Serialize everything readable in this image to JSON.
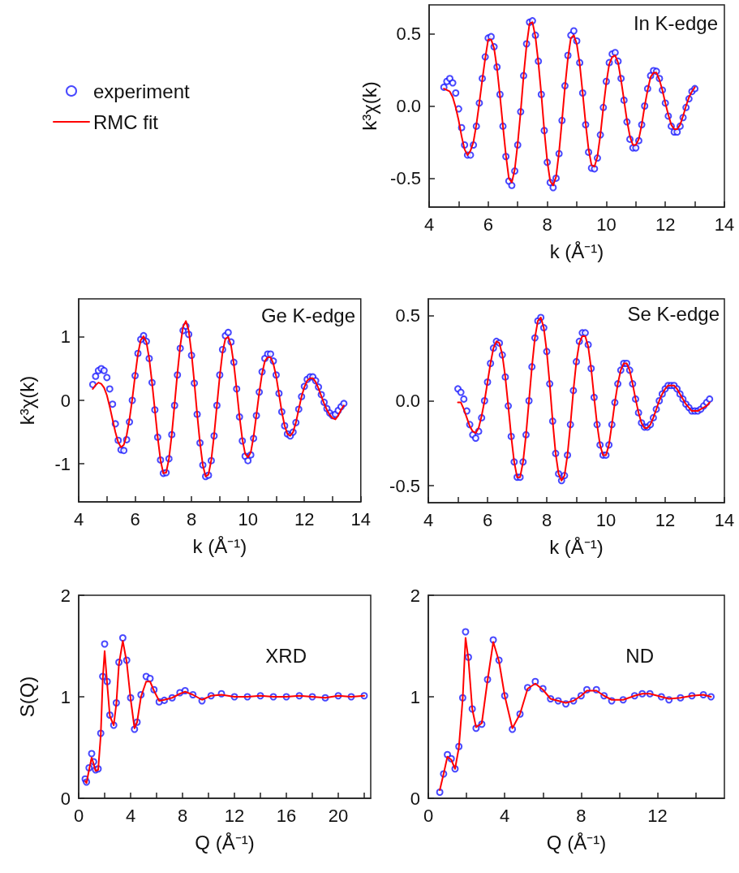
{
  "chart_data": [
    {
      "type": "scatter",
      "ylabel": "k³χ(k)",
      "xlabel": "k (Å⁻¹)",
      "annotations": [
        "In K-edge"
      ],
      "legend": "left",
      "xlim": [
        4,
        14
      ],
      "xticks": [
        4,
        {
          "value": 5,
          "label": null
        },
        6,
        {
          "value": 7,
          "label": null
        },
        8,
        {
          "value": 9,
          "label": null
        },
        10,
        {
          "value": 11,
          "label": null
        },
        12,
        {
          "value": 13,
          "label": null
        },
        14
      ],
      "ylim": [
        -0.7,
        0.7
      ],
      "yticks": [
        -0.5,
        {
          "value": 0,
          "label": "0.0"
        },
        0.5
      ],
      "x": [
        4.5,
        4.6,
        4.7,
        4.8,
        4.9,
        5.0,
        5.1,
        5.2,
        5.3,
        5.4,
        5.5,
        5.6,
        5.7,
        5.8,
        5.9,
        6.0,
        6.1,
        6.2,
        6.3,
        6.4,
        6.5,
        6.6,
        6.7,
        6.8,
        6.9,
        7.0,
        7.1,
        7.2,
        7.3,
        7.4,
        7.5,
        7.6,
        7.7,
        7.8,
        7.9,
        8.0,
        8.1,
        8.2,
        8.3,
        8.4,
        8.5,
        8.6,
        8.7,
        8.8,
        8.9,
        9.0,
        9.1,
        9.2,
        9.3,
        9.4,
        9.5,
        9.6,
        9.7,
        9.8,
        9.9,
        10.0,
        10.1,
        10.2,
        10.3,
        10.4,
        10.5,
        10.6,
        10.7,
        10.8,
        10.9,
        11.0,
        11.1,
        11.2,
        11.3,
        11.4,
        11.5,
        11.6,
        11.7,
        11.8,
        11.9,
        12.0,
        12.1,
        12.2,
        12.3,
        12.4,
        12.5,
        12.6,
        12.7,
        12.8,
        12.9,
        13.0
      ],
      "series": [
        {
          "name": "experiment",
          "type": "scatter",
          "marker": "circle",
          "color": "#1a1aff",
          "values": [
            0.13,
            0.17,
            0.19,
            0.16,
            0.09,
            -0.02,
            -0.15,
            -0.27,
            -0.34,
            -0.34,
            -0.27,
            -0.14,
            0.02,
            0.19,
            0.34,
            0.47,
            0.48,
            0.41,
            0.27,
            0.08,
            -0.14,
            -0.35,
            -0.52,
            -0.55,
            -0.45,
            -0.27,
            -0.04,
            0.21,
            0.43,
            0.58,
            0.59,
            0.49,
            0.31,
            0.08,
            -0.17,
            -0.39,
            -0.53,
            -0.565,
            -0.5,
            -0.33,
            -0.1,
            0.14,
            0.35,
            0.49,
            0.52,
            0.45,
            0.3,
            0.09,
            -0.13,
            -0.32,
            -0.43,
            -0.435,
            -0.36,
            -0.2,
            -0.01,
            0.17,
            0.3,
            0.36,
            0.37,
            0.31,
            0.19,
            0.04,
            -0.11,
            -0.23,
            -0.29,
            -0.29,
            -0.24,
            -0.13,
            0.0,
            0.12,
            0.21,
            0.245,
            0.24,
            0.19,
            0.11,
            0.02,
            -0.07,
            -0.14,
            -0.18,
            -0.18,
            -0.14,
            -0.08,
            -0.01,
            0.05,
            0.1,
            0.12
          ]
        },
        {
          "name": "RMC fit",
          "type": "line",
          "marker": "none",
          "line_style": "solid",
          "color": "#ff0000",
          "values": [
            0.12,
            0.11,
            0.1,
            0.06,
            -0.01,
            -0.1,
            -0.21,
            -0.3,
            -0.34,
            -0.31,
            -0.25,
            -0.13,
            0.02,
            0.18,
            0.33,
            0.46,
            0.46,
            0.4,
            0.26,
            0.07,
            -0.14,
            -0.34,
            -0.5,
            -0.53,
            -0.44,
            -0.26,
            -0.04,
            0.21,
            0.42,
            0.57,
            0.58,
            0.48,
            0.3,
            0.08,
            -0.17,
            -0.38,
            -0.52,
            -0.55,
            -0.49,
            -0.32,
            -0.1,
            0.13,
            0.33,
            0.47,
            0.49,
            0.43,
            0.29,
            0.09,
            -0.12,
            -0.3,
            -0.41,
            -0.42,
            -0.35,
            -0.2,
            -0.01,
            0.16,
            0.29,
            0.34,
            0.35,
            0.3,
            0.18,
            0.04,
            -0.1,
            -0.21,
            -0.27,
            -0.27,
            -0.23,
            -0.13,
            0.0,
            0.11,
            0.2,
            0.23,
            0.23,
            0.18,
            0.11,
            0.02,
            -0.06,
            -0.13,
            -0.16,
            -0.16,
            -0.13,
            -0.07,
            0.0,
            0.06,
            0.1,
            0.13
          ]
        }
      ]
    },
    {
      "type": "scatter",
      "ylabel": "k³χ(k)",
      "xlabel": "k (Å⁻¹)",
      "annotations": [
        "Ge K-edge"
      ],
      "xlim": [
        4,
        14
      ],
      "xticks": [
        4,
        {
          "value": 5,
          "label": null
        },
        6,
        {
          "value": 7,
          "label": null
        },
        8,
        {
          "value": 9,
          "label": null
        },
        10,
        {
          "value": 11,
          "label": null
        },
        12,
        {
          "value": 13,
          "label": null
        },
        14
      ],
      "ylim": [
        -1.6,
        1.6
      ],
      "yticks": [
        -1,
        0,
        1
      ],
      "x": [
        4.5,
        4.6,
        4.7,
        4.8,
        4.9,
        5.0,
        5.1,
        5.2,
        5.3,
        5.4,
        5.5,
        5.6,
        5.7,
        5.8,
        5.9,
        6.0,
        6.1,
        6.2,
        6.3,
        6.4,
        6.5,
        6.6,
        6.7,
        6.8,
        6.9,
        7.0,
        7.1,
        7.2,
        7.3,
        7.4,
        7.5,
        7.6,
        7.7,
        7.8,
        7.9,
        8.0,
        8.1,
        8.2,
        8.3,
        8.4,
        8.5,
        8.6,
        8.7,
        8.8,
        8.9,
        9.0,
        9.1,
        9.2,
        9.3,
        9.4,
        9.5,
        9.6,
        9.7,
        9.8,
        9.9,
        10.0,
        10.1,
        10.2,
        10.3,
        10.4,
        10.5,
        10.6,
        10.7,
        10.8,
        10.9,
        11.0,
        11.1,
        11.2,
        11.3,
        11.4,
        11.5,
        11.6,
        11.7,
        11.8,
        11.9,
        12.0,
        12.1,
        12.2,
        12.3,
        12.4,
        12.5,
        12.6,
        12.7,
        12.8,
        12.9,
        13.0,
        13.1,
        13.2,
        13.3,
        13.4
      ],
      "series": [
        {
          "type": "scatter",
          "marker": "circle",
          "color": "#1a1aff",
          "values": [
            0.25,
            0.38,
            0.47,
            0.5,
            0.47,
            0.36,
            0.18,
            -0.06,
            -0.37,
            -0.63,
            -0.78,
            -0.79,
            -0.62,
            -0.34,
            0.0,
            0.39,
            0.74,
            0.96,
            1.02,
            0.93,
            0.66,
            0.28,
            -0.15,
            -0.58,
            -0.94,
            -1.15,
            -1.14,
            -0.92,
            -0.54,
            -0.08,
            0.4,
            0.82,
            1.1,
            1.17,
            1.04,
            0.71,
            0.27,
            -0.22,
            -0.67,
            -1.02,
            -1.2,
            -1.18,
            -0.95,
            -0.56,
            -0.08,
            0.4,
            0.8,
            1.02,
            1.07,
            0.92,
            0.6,
            0.18,
            -0.26,
            -0.64,
            -0.88,
            -0.95,
            -0.86,
            -0.6,
            -0.24,
            0.13,
            0.45,
            0.66,
            0.73,
            0.73,
            0.62,
            0.4,
            0.11,
            -0.18,
            -0.4,
            -0.53,
            -0.56,
            -0.5,
            -0.35,
            -0.14,
            0.06,
            0.22,
            0.33,
            0.37,
            0.37,
            0.31,
            0.21,
            0.09,
            -0.03,
            -0.13,
            -0.2,
            -0.24,
            -0.22,
            -0.16,
            -0.1,
            -0.05
          ]
        },
        {
          "type": "line",
          "marker": "none",
          "line_style": "solid",
          "color": "#ff0000",
          "values": [
            0.18,
            0.24,
            0.28,
            0.26,
            0.2,
            0.08,
            -0.1,
            -0.3,
            -0.5,
            -0.66,
            -0.74,
            -0.7,
            -0.55,
            -0.3,
            0.02,
            0.39,
            0.73,
            0.95,
            1.01,
            0.92,
            0.66,
            0.28,
            -0.15,
            -0.58,
            -0.94,
            -1.15,
            -1.14,
            -0.92,
            -0.54,
            -0.06,
            0.43,
            0.86,
            1.16,
            1.25,
            1.1,
            0.74,
            0.28,
            -0.22,
            -0.67,
            -1.02,
            -1.2,
            -1.17,
            -0.94,
            -0.55,
            -0.08,
            0.38,
            0.76,
            0.97,
            1.0,
            0.87,
            0.57,
            0.17,
            -0.25,
            -0.61,
            -0.84,
            -0.9,
            -0.82,
            -0.57,
            -0.23,
            0.12,
            0.42,
            0.62,
            0.68,
            0.68,
            0.58,
            0.38,
            0.1,
            -0.18,
            -0.4,
            -0.53,
            -0.56,
            -0.5,
            -0.35,
            -0.14,
            0.06,
            0.21,
            0.31,
            0.35,
            0.35,
            0.29,
            0.19,
            0.07,
            -0.05,
            -0.15,
            -0.23,
            -0.28,
            -0.3,
            -0.24,
            -0.15,
            -0.08
          ]
        }
      ]
    },
    {
      "type": "scatter",
      "xlabel": "k (Å⁻¹)",
      "annotations": [
        "Se K-edge"
      ],
      "xlim": [
        4,
        14
      ],
      "xticks": [
        4,
        {
          "value": 5,
          "label": null
        },
        6,
        {
          "value": 7,
          "label": null
        },
        8,
        {
          "value": 9,
          "label": null
        },
        10,
        {
          "value": 11,
          "label": null
        },
        12,
        {
          "value": 13,
          "label": null
        },
        14
      ],
      "ylim": [
        -0.6,
        0.6
      ],
      "yticks": [
        -0.5,
        {
          "value": 0,
          "label": "0.0"
        },
        0.5
      ],
      "x": [
        5.0,
        5.1,
        5.2,
        5.3,
        5.4,
        5.5,
        5.6,
        5.7,
        5.8,
        5.9,
        6.0,
        6.1,
        6.2,
        6.3,
        6.4,
        6.5,
        6.6,
        6.7,
        6.8,
        6.9,
        7.0,
        7.1,
        7.2,
        7.3,
        7.4,
        7.5,
        7.6,
        7.7,
        7.8,
        7.9,
        8.0,
        8.1,
        8.2,
        8.3,
        8.4,
        8.5,
        8.6,
        8.7,
        8.8,
        8.9,
        9.0,
        9.1,
        9.2,
        9.3,
        9.4,
        9.5,
        9.6,
        9.7,
        9.8,
        9.9,
        10.0,
        10.1,
        10.2,
        10.3,
        10.4,
        10.5,
        10.6,
        10.7,
        10.8,
        10.9,
        11.0,
        11.1,
        11.2,
        11.3,
        11.4,
        11.5,
        11.6,
        11.7,
        11.8,
        11.9,
        12.0,
        12.1,
        12.2,
        12.3,
        12.4,
        12.5,
        12.6,
        12.7,
        12.8,
        12.9,
        13.0,
        13.1,
        13.2,
        13.3,
        13.4,
        13.5
      ],
      "series": [
        {
          "type": "scatter",
          "marker": "circle",
          "color": "#1a1aff",
          "values": [
            0.07,
            0.05,
            0.01,
            -0.06,
            -0.14,
            -0.2,
            -0.22,
            -0.18,
            -0.1,
            0.0,
            0.11,
            0.22,
            0.31,
            0.35,
            0.34,
            0.27,
            0.14,
            -0.03,
            -0.21,
            -0.36,
            -0.45,
            -0.45,
            -0.36,
            -0.2,
            0.0,
            0.2,
            0.37,
            0.47,
            0.49,
            0.43,
            0.29,
            0.1,
            -0.12,
            -0.31,
            -0.43,
            -0.47,
            -0.44,
            -0.32,
            -0.14,
            0.06,
            0.23,
            0.35,
            0.4,
            0.4,
            0.33,
            0.19,
            0.02,
            -0.14,
            -0.26,
            -0.32,
            -0.32,
            -0.26,
            -0.14,
            -0.01,
            0.1,
            0.18,
            0.22,
            0.22,
            0.18,
            0.1,
            0.01,
            -0.07,
            -0.13,
            -0.155,
            -0.155,
            -0.14,
            -0.1,
            -0.05,
            0.0,
            0.04,
            0.07,
            0.09,
            0.09,
            0.09,
            0.07,
            0.04,
            0.01,
            -0.02,
            -0.04,
            -0.06,
            -0.06,
            -0.06,
            -0.05,
            -0.03,
            -0.01,
            0.01
          ]
        },
        {
          "type": "line",
          "marker": "none",
          "line_style": "solid",
          "color": "#ff0000",
          "values": [
            -0.01,
            -0.01,
            -0.05,
            -0.1,
            -0.15,
            -0.18,
            -0.19,
            -0.16,
            -0.09,
            0.0,
            0.11,
            0.22,
            0.31,
            0.35,
            0.34,
            0.27,
            0.14,
            -0.03,
            -0.21,
            -0.36,
            -0.45,
            -0.45,
            -0.36,
            -0.2,
            0.0,
            0.2,
            0.37,
            0.47,
            0.49,
            0.43,
            0.29,
            0.1,
            -0.12,
            -0.31,
            -0.43,
            -0.47,
            -0.44,
            -0.32,
            -0.14,
            0.06,
            0.23,
            0.34,
            0.38,
            0.38,
            0.32,
            0.19,
            0.02,
            -0.14,
            -0.26,
            -0.32,
            -0.32,
            -0.26,
            -0.14,
            -0.01,
            0.1,
            0.18,
            0.22,
            0.22,
            0.18,
            0.1,
            0.01,
            -0.07,
            -0.13,
            -0.16,
            -0.16,
            -0.14,
            -0.1,
            -0.05,
            0.0,
            0.04,
            0.07,
            0.09,
            0.09,
            0.09,
            0.07,
            0.04,
            0.01,
            -0.02,
            -0.04,
            -0.06,
            -0.06,
            -0.06,
            -0.05,
            -0.04,
            -0.03,
            -0.01
          ]
        }
      ]
    },
    {
      "type": "scatter",
      "ylabel": "S(Q)",
      "xlabel": "Q (Å⁻¹)",
      "annotations": [
        "XRD"
      ],
      "xlim": [
        0,
        22.5
      ],
      "xticks": [
        0,
        {
          "value": 2,
          "label": null
        },
        4,
        {
          "value": 6,
          "label": null
        },
        8,
        {
          "value": 10,
          "label": null
        },
        12,
        {
          "value": 14,
          "label": null
        },
        16,
        {
          "value": 18,
          "label": null
        },
        20,
        {
          "value": 22,
          "label": null
        }
      ],
      "ylim": [
        0,
        2
      ],
      "yticks": [
        0,
        1,
        2
      ],
      "x": [
        0.5,
        0.6,
        0.8,
        1.0,
        1.15,
        1.3,
        1.5,
        1.7,
        1.85,
        2.0,
        2.2,
        2.4,
        2.7,
        2.9,
        3.1,
        3.4,
        3.7,
        4.0,
        4.3,
        4.5,
        4.8,
        5.2,
        5.5,
        5.8,
        6.2,
        6.6,
        7.2,
        7.8,
        8.2,
        8.8,
        9.5,
        10.2,
        11,
        12,
        13,
        14,
        15,
        16,
        17,
        18,
        19,
        20,
        21,
        22
      ],
      "series": [
        {
          "type": "scatter",
          "marker": "circle",
          "color": "#1a1aff",
          "values": [
            0.19,
            0.16,
            0.3,
            0.44,
            0.36,
            0.28,
            0.29,
            0.64,
            1.2,
            1.52,
            1.15,
            0.82,
            0.72,
            0.94,
            1.34,
            1.58,
            1.36,
            0.99,
            0.68,
            0.75,
            1.02,
            1.2,
            1.18,
            1.07,
            0.95,
            0.965,
            0.99,
            1.04,
            1.06,
            1.02,
            0.96,
            1.01,
            1.03,
            1.0,
            1.0,
            1.01,
            1.0,
            1.0,
            1.01,
            1.0,
            0.99,
            1.01,
            1.0,
            1.01
          ]
        },
        {
          "type": "line",
          "marker": "none",
          "line_style": "solid",
          "color": "#ff0000",
          "values": [
            0.17,
            0.15,
            0.28,
            0.4,
            0.34,
            0.27,
            0.28,
            0.62,
            1.16,
            1.45,
            1.12,
            0.81,
            0.72,
            0.93,
            1.32,
            1.55,
            1.34,
            0.98,
            0.69,
            0.75,
            1.0,
            1.15,
            1.15,
            1.06,
            0.96,
            0.97,
            0.99,
            1.03,
            1.05,
            1.02,
            0.97,
            1.01,
            1.02,
            1.0,
            1.0,
            1.01,
            1.0,
            1.0,
            1.01,
            1.0,
            0.99,
            1.01,
            1.0,
            1.01
          ]
        }
      ]
    },
    {
      "type": "scatter",
      "annotations": [
        "ND"
      ],
      "xlabel": "Q (Å⁻¹)",
      "xlim": [
        0,
        15.5
      ],
      "xticks": [
        0,
        {
          "value": 2,
          "label": null
        },
        4,
        {
          "value": 6,
          "label": null
        },
        8,
        {
          "value": 10,
          "label": null
        },
        12,
        {
          "value": 14,
          "label": null
        }
      ],
      "ylim": [
        0,
        2
      ],
      "yticks": [
        0,
        1,
        2
      ],
      "x": [
        0.6,
        0.8,
        1.0,
        1.2,
        1.4,
        1.6,
        1.8,
        1.95,
        2.1,
        2.3,
        2.5,
        2.8,
        3.1,
        3.4,
        3.7,
        4.0,
        4.4,
        4.8,
        5.2,
        5.6,
        6.0,
        6.4,
        6.8,
        7.2,
        7.6,
        8.0,
        8.3,
        8.8,
        9.2,
        9.6,
        10.2,
        10.8,
        11.2,
        11.6,
        12.2,
        12.6,
        13.2,
        13.8,
        14.4,
        14.8
      ],
      "series": [
        {
          "type": "scatter",
          "marker": "circle",
          "color": "#1a1aff",
          "values": [
            0.06,
            0.24,
            0.43,
            0.39,
            0.29,
            0.51,
            0.99,
            1.64,
            1.39,
            0.88,
            0.69,
            0.73,
            1.17,
            1.56,
            1.36,
            1.01,
            0.68,
            0.83,
            1.09,
            1.15,
            1.08,
            0.98,
            0.96,
            0.93,
            0.96,
            1.01,
            1.07,
            1.07,
            1.01,
            0.96,
            0.97,
            1.01,
            1.03,
            1.03,
            1.0,
            0.97,
            0.99,
            1.01,
            1.02,
            1.0
          ]
        },
        {
          "type": "line",
          "marker": "none",
          "line_style": "solid",
          "color": "#ff0000",
          "values": [
            0.08,
            0.24,
            0.41,
            0.38,
            0.29,
            0.5,
            0.98,
            1.58,
            1.37,
            0.88,
            0.7,
            0.74,
            1.16,
            1.54,
            1.35,
            1.01,
            0.69,
            0.83,
            1.08,
            1.13,
            1.07,
            0.98,
            0.96,
            0.94,
            0.96,
            1.01,
            1.06,
            1.06,
            1.01,
            0.97,
            0.97,
            1.01,
            1.03,
            1.03,
            1.0,
            0.98,
            0.99,
            1.01,
            1.02,
            1.0
          ]
        }
      ]
    }
  ]
}
